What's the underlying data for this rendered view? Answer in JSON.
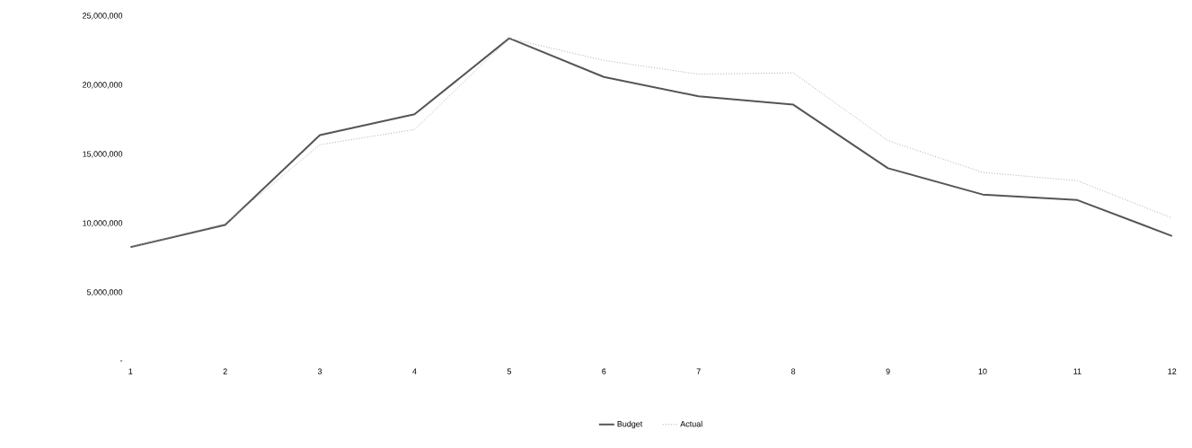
{
  "chart_data": {
    "type": "line",
    "categories": [
      "1",
      "2",
      "3",
      "4",
      "5",
      "6",
      "7",
      "8",
      "9",
      "10",
      "11",
      "12"
    ],
    "series": [
      {
        "name": "Budget",
        "color": "#555555",
        "line_style": "solid",
        "values": [
          8300000,
          9900000,
          16400000,
          17900000,
          23400000,
          20600000,
          19200000,
          18600000,
          14000000,
          12100000,
          11700000,
          9100000
        ]
      },
      {
        "name": "Actual",
        "color": "#aaaaaa",
        "line_style": "dotted",
        "values": [
          8300000,
          10000000,
          15700000,
          16800000,
          23400000,
          21800000,
          20800000,
          20900000,
          16000000,
          13700000,
          13100000,
          10400000
        ]
      }
    ],
    "ylim": [
      0,
      25000000
    ],
    "yticks": [
      {
        "value": 0,
        "label": "-"
      },
      {
        "value": 5000000,
        "label": "5,000,000"
      },
      {
        "value": 10000000,
        "label": "10,000,000"
      },
      {
        "value": 15000000,
        "label": "15,000,000"
      },
      {
        "value": 20000000,
        "label": "20,000,000"
      },
      {
        "value": 25000000,
        "label": "25,000,000"
      }
    ],
    "legend": "bottom",
    "marker": "none"
  }
}
